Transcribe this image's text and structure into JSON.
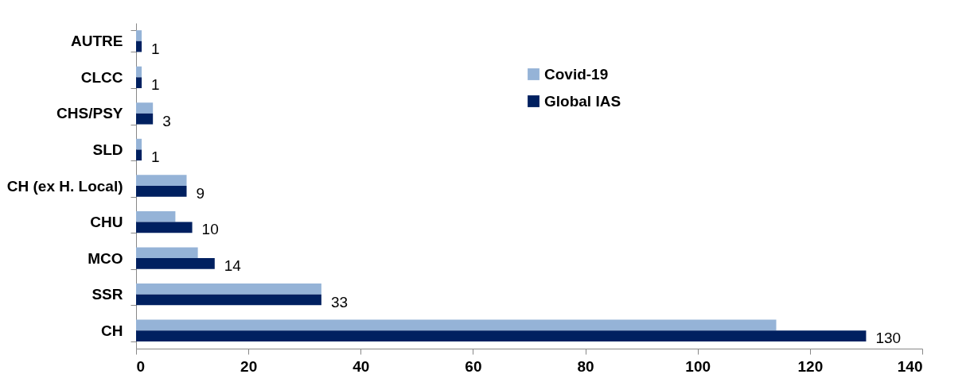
{
  "chart_data": {
    "type": "bar",
    "orientation": "horizontal",
    "categories": [
      "AUTRE",
      "CLCC",
      "CHS/PSY",
      "SLD",
      "CH (ex H. Local)",
      "CHU",
      "MCO",
      "SSR",
      "CH"
    ],
    "series": [
      {
        "name": "Covid-19",
        "color": "#95b3d7",
        "values": [
          1,
          1,
          3,
          1,
          9,
          7,
          11,
          33,
          114
        ]
      },
      {
        "name": "Global IAS",
        "color": "#002060",
        "values": [
          1,
          1,
          3,
          1,
          9,
          10,
          14,
          33,
          130
        ],
        "value_labels": [
          "1",
          "1",
          "3",
          "1",
          "9",
          "10",
          "14",
          "33",
          "130"
        ]
      }
    ],
    "xlim": [
      0,
      140
    ],
    "xticks": [
      0,
      20,
      40,
      60,
      80,
      100,
      120,
      140
    ],
    "grid": false,
    "legend": "top right"
  }
}
